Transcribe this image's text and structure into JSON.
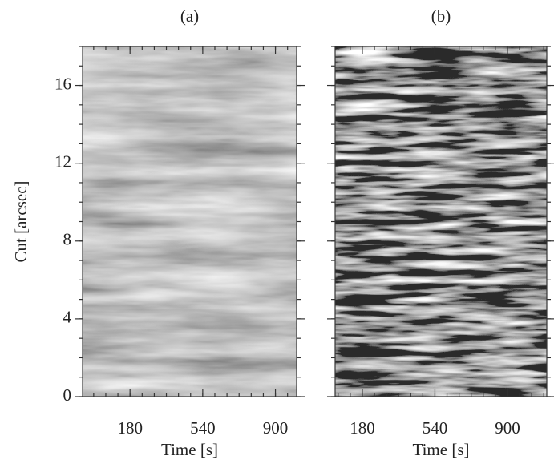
{
  "chart_data": [
    {
      "type": "image",
      "title": "(a)",
      "xlabel": "Time [s]",
      "ylabel": "Cut [arcsec]",
      "xlim": [
        -55,
        1005
      ],
      "ylim": [
        0,
        18
      ],
      "xticks": [
        180,
        540,
        900
      ],
      "yticks": [
        0,
        4,
        8,
        12,
        16
      ]
    },
    {
      "type": "image",
      "title": "(b)",
      "xlabel": "Time [s]",
      "xlim": [
        45,
        1095
      ],
      "ylim": [
        0,
        18
      ],
      "xticks": [
        180,
        540,
        900
      ]
    }
  ]
}
